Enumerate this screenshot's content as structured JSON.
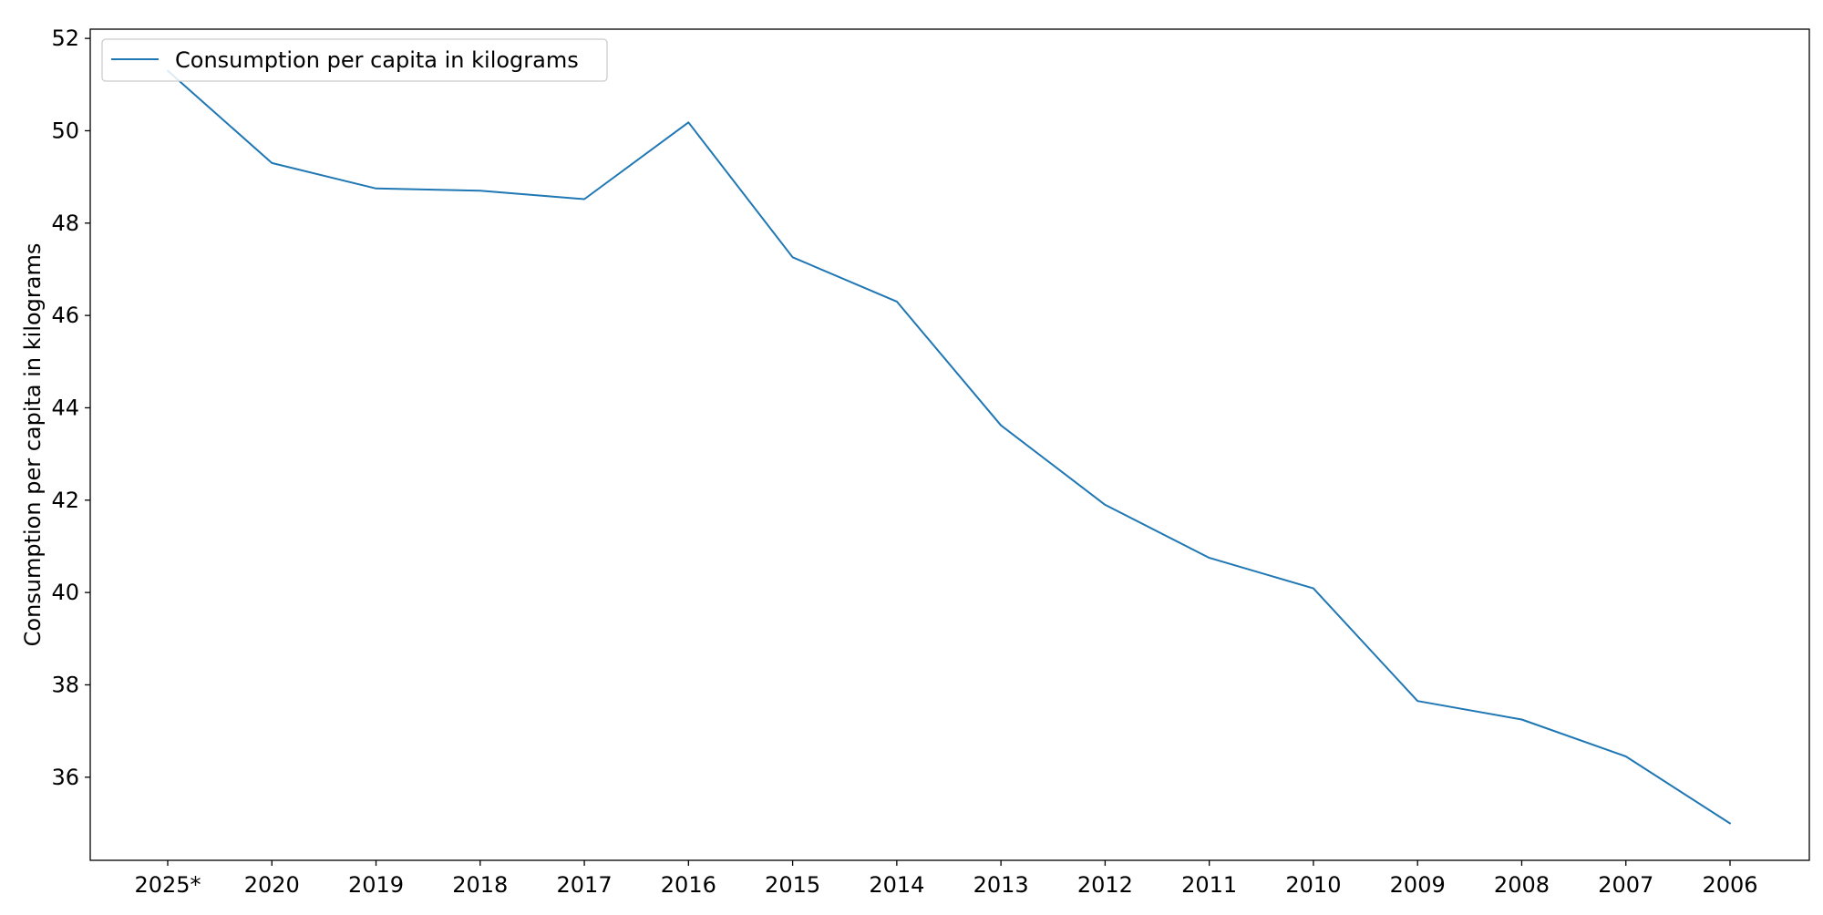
{
  "chart_data": {
    "type": "line",
    "categories": [
      "2025*",
      "2020",
      "2019",
      "2018",
      "2017",
      "2016",
      "2015",
      "2014",
      "2013",
      "2012",
      "2011",
      "2010",
      "2009",
      "2008",
      "2007",
      "2006"
    ],
    "series": [
      {
        "name": "Consumption per capita in kilograms",
        "values": [
          51.3,
          49.3,
          48.75,
          48.7,
          48.52,
          50.18,
          47.26,
          46.3,
          43.62,
          41.9,
          40.75,
          40.09,
          37.65,
          37.25,
          36.45,
          35.0
        ],
        "color": "#1f77b4"
      }
    ],
    "title": "",
    "xlabel": "",
    "ylabel": "Consumption per capita in kilograms",
    "ylim": [
      34.2,
      52.2
    ],
    "yticks": [
      36,
      38,
      40,
      42,
      44,
      46,
      48,
      50,
      52
    ],
    "grid": false,
    "legend_position": "upper-left"
  }
}
